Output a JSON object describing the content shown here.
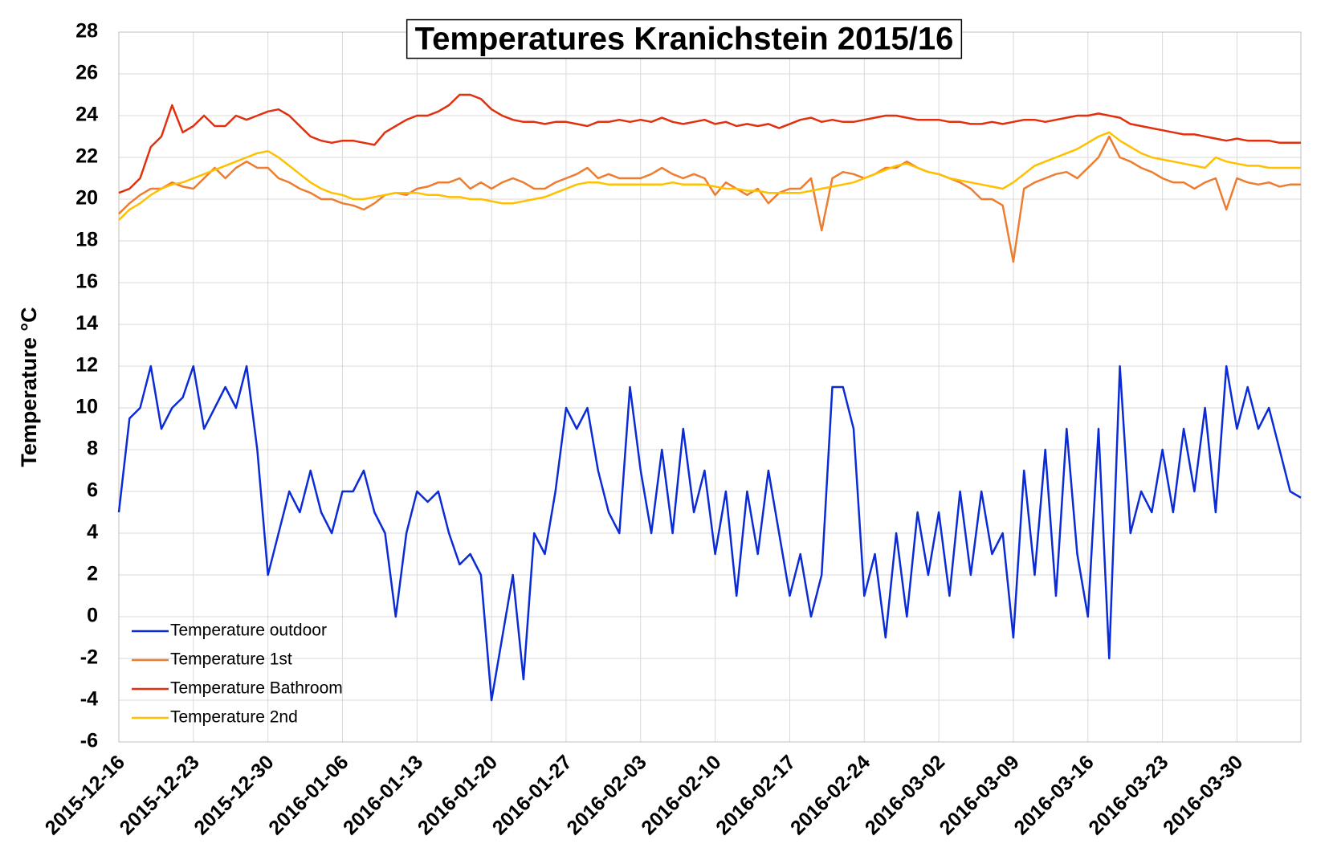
{
  "chart_data": {
    "type": "line",
    "title": "Temperatures Kranichstein 2015/16",
    "y_label": "Temperature °C",
    "x": [
      "2015-12-16",
      "2015-12-17",
      "2015-12-18",
      "2015-12-19",
      "2015-12-20",
      "2015-12-21",
      "2015-12-22",
      "2015-12-23",
      "2015-12-24",
      "2015-12-25",
      "2015-12-26",
      "2015-12-27",
      "2015-12-28",
      "2015-12-29",
      "2015-12-30",
      "2015-12-31",
      "2016-01-01",
      "2016-01-02",
      "2016-01-03",
      "2016-01-04",
      "2016-01-05",
      "2016-01-06",
      "2016-01-07",
      "2016-01-08",
      "2016-01-09",
      "2016-01-10",
      "2016-01-11",
      "2016-01-12",
      "2016-01-13",
      "2016-01-14",
      "2016-01-15",
      "2016-01-16",
      "2016-01-17",
      "2016-01-18",
      "2016-01-19",
      "2016-01-20",
      "2016-01-21",
      "2016-01-22",
      "2016-01-23",
      "2016-01-24",
      "2016-01-25",
      "2016-01-26",
      "2016-01-27",
      "2016-01-28",
      "2016-01-29",
      "2016-01-30",
      "2016-01-31",
      "2016-02-01",
      "2016-02-02",
      "2016-02-03",
      "2016-02-04",
      "2016-02-05",
      "2016-02-06",
      "2016-02-07",
      "2016-02-08",
      "2016-02-09",
      "2016-02-10",
      "2016-02-11",
      "2016-02-12",
      "2016-02-13",
      "2016-02-14",
      "2016-02-15",
      "2016-02-16",
      "2016-02-17",
      "2016-02-18",
      "2016-02-19",
      "2016-02-20",
      "2016-02-21",
      "2016-02-22",
      "2016-02-23",
      "2016-02-24",
      "2016-02-25",
      "2016-02-26",
      "2016-02-27",
      "2016-02-28",
      "2016-02-29",
      "2016-03-01",
      "2016-03-02",
      "2016-03-03",
      "2016-03-04",
      "2016-03-05",
      "2016-03-06",
      "2016-03-07",
      "2016-03-08",
      "2016-03-09",
      "2016-03-10",
      "2016-03-11",
      "2016-03-12",
      "2016-03-13",
      "2016-03-14",
      "2016-03-15",
      "2016-03-16",
      "2016-03-17",
      "2016-03-18",
      "2016-03-19",
      "2016-03-20",
      "2016-03-21",
      "2016-03-22",
      "2016-03-23",
      "2016-03-24",
      "2016-03-25",
      "2016-03-26",
      "2016-03-27",
      "2016-03-28",
      "2016-03-29",
      "2016-03-30",
      "2016-03-31",
      "2016-04-01",
      "2016-04-02",
      "2016-04-03",
      "2016-04-04",
      "2016-04-05"
    ],
    "series": [
      {
        "name": "Temperature outdoor",
        "color": "#0a2bd6",
        "values": [
          5,
          9.5,
          10,
          12,
          9,
          10,
          10.5,
          12,
          9,
          10,
          11,
          10,
          12,
          8,
          2,
          4,
          6,
          5,
          7,
          5,
          4,
          6,
          6,
          7,
          5,
          4,
          0,
          4,
          6,
          5.5,
          6,
          4,
          2.5,
          3,
          2,
          -4,
          -1,
          2,
          -3,
          4,
          3,
          6,
          10,
          9,
          10,
          7,
          5,
          4,
          11,
          7,
          4,
          8,
          4,
          9,
          5,
          7,
          3,
          6,
          1,
          6,
          3,
          7,
          4,
          1,
          3,
          0,
          2,
          11,
          11,
          9,
          1,
          3,
          -1,
          4,
          0,
          5,
          2,
          5,
          1,
          6,
          2,
          6,
          3,
          4,
          -1,
          7,
          2,
          8,
          1,
          9,
          3,
          0,
          9,
          -2,
          12,
          4,
          6,
          5,
          8,
          5,
          9,
          6,
          10,
          5,
          12,
          9,
          11,
          9,
          10,
          8,
          6,
          5.7
        ]
      },
      {
        "name": "Temperature 1st",
        "color": "#ed7d31",
        "values": [
          19.3,
          19.8,
          20.2,
          20.5,
          20.5,
          20.8,
          20.6,
          20.5,
          21,
          21.5,
          21,
          21.5,
          21.8,
          21.5,
          21.5,
          21,
          20.8,
          20.5,
          20.3,
          20,
          20,
          19.8,
          19.7,
          19.5,
          19.8,
          20.2,
          20.3,
          20.2,
          20.5,
          20.6,
          20.8,
          20.8,
          21,
          20.5,
          20.8,
          20.5,
          20.8,
          21,
          20.8,
          20.5,
          20.5,
          20.8,
          21,
          21.2,
          21.5,
          21,
          21.2,
          21,
          21,
          21,
          21.2,
          21.5,
          21.2,
          21,
          21.2,
          21,
          20.2,
          20.8,
          20.5,
          20.2,
          20.5,
          19.8,
          20.3,
          20.5,
          20.5,
          21,
          18.5,
          21,
          21.3,
          21.2,
          21,
          21.2,
          21.5,
          21.5,
          21.8,
          21.5,
          21.3,
          21.2,
          21,
          20.8,
          20.5,
          20,
          20,
          19.7,
          17,
          20.5,
          20.8,
          21,
          21.2,
          21.3,
          21,
          21.5,
          22,
          23,
          22,
          21.8,
          21.5,
          21.3,
          21,
          20.8,
          20.8,
          20.5,
          20.8,
          21,
          19.5,
          21,
          20.8,
          20.7,
          20.8,
          20.6,
          20.7,
          20.7
        ]
      },
      {
        "name": "Temperature Bathroom",
        "color": "#e2300f",
        "values": [
          20.3,
          20.5,
          21,
          22.5,
          23,
          24.5,
          23.2,
          23.5,
          24,
          23.5,
          23.5,
          24,
          23.8,
          24,
          24.2,
          24.3,
          24,
          23.5,
          23,
          22.8,
          22.7,
          22.8,
          22.8,
          22.7,
          22.6,
          23.2,
          23.5,
          23.8,
          24,
          24,
          24.2,
          24.5,
          25,
          25,
          24.8,
          24.3,
          24,
          23.8,
          23.7,
          23.7,
          23.6,
          23.7,
          23.7,
          23.6,
          23.5,
          23.7,
          23.7,
          23.8,
          23.7,
          23.8,
          23.7,
          23.9,
          23.7,
          23.6,
          23.7,
          23.8,
          23.6,
          23.7,
          23.5,
          23.6,
          23.5,
          23.6,
          23.4,
          23.6,
          23.8,
          23.9,
          23.7,
          23.8,
          23.7,
          23.7,
          23.8,
          23.9,
          24,
          24,
          23.9,
          23.8,
          23.8,
          23.8,
          23.7,
          23.7,
          23.6,
          23.6,
          23.7,
          23.6,
          23.7,
          23.8,
          23.8,
          23.7,
          23.8,
          23.9,
          24,
          24,
          24.1,
          24,
          23.9,
          23.6,
          23.5,
          23.4,
          23.3,
          23.2,
          23.1,
          23.1,
          23,
          22.9,
          22.8,
          22.9,
          22.8,
          22.8,
          22.8,
          22.7,
          22.7,
          22.7
        ]
      },
      {
        "name": "Temperature 2nd",
        "color": "#ffc000",
        "values": [
          19,
          19.5,
          19.8,
          20.2,
          20.5,
          20.7,
          20.8,
          21,
          21.2,
          21.4,
          21.6,
          21.8,
          22,
          22.2,
          22.3,
          22,
          21.6,
          21.2,
          20.8,
          20.5,
          20.3,
          20.2,
          20,
          20,
          20.1,
          20.2,
          20.3,
          20.3,
          20.3,
          20.2,
          20.2,
          20.1,
          20.1,
          20,
          20,
          19.9,
          19.8,
          19.8,
          19.9,
          20,
          20.1,
          20.3,
          20.5,
          20.7,
          20.8,
          20.8,
          20.7,
          20.7,
          20.7,
          20.7,
          20.7,
          20.7,
          20.8,
          20.7,
          20.7,
          20.7,
          20.6,
          20.5,
          20.5,
          20.4,
          20.4,
          20.3,
          20.3,
          20.3,
          20.3,
          20.4,
          20.5,
          20.6,
          20.7,
          20.8,
          21,
          21.2,
          21.4,
          21.6,
          21.7,
          21.5,
          21.3,
          21.2,
          21,
          20.9,
          20.8,
          20.7,
          20.6,
          20.5,
          20.8,
          21.2,
          21.6,
          21.8,
          22,
          22.2,
          22.4,
          22.7,
          23,
          23.2,
          22.8,
          22.5,
          22.2,
          22,
          21.9,
          21.8,
          21.7,
          21.6,
          21.5,
          22,
          21.8,
          21.7,
          21.6,
          21.6,
          21.5,
          21.5,
          21.5,
          21.5
        ]
      }
    ],
    "xlim": [
      "2015-12-16",
      "2016-04-05"
    ],
    "xticks": [
      "2015-12-16",
      "2015-12-23",
      "2015-12-30",
      "2016-01-06",
      "2016-01-13",
      "2016-01-20",
      "2016-01-27",
      "2016-02-03",
      "2016-02-10",
      "2016-02-17",
      "2016-02-24",
      "2016-03-02",
      "2016-03-09",
      "2016-03-16",
      "2016-03-23",
      "2016-03-30"
    ],
    "ylim": [
      -6,
      28
    ],
    "yticks": [
      -6,
      -4,
      -2,
      0,
      2,
      4,
      6,
      8,
      10,
      12,
      14,
      16,
      18,
      20,
      22,
      24,
      26,
      28
    ],
    "grid": true,
    "legend": "lower left"
  }
}
